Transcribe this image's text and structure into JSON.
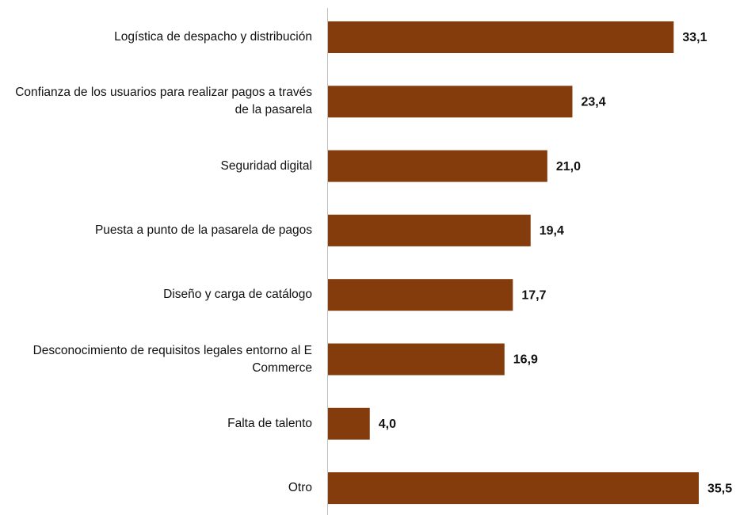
{
  "chart_data": {
    "type": "bar",
    "orientation": "horizontal",
    "color": "#843c0c",
    "categories": [
      "Logística de despacho y distribución",
      "Confianza de los usuarios para realizar pagos a través de la pasarela",
      "Seguridad digital",
      "Puesta a punto de la pasarela de pagos",
      "Diseño y carga de catálogo",
      "Desconocimiento de requisitos legales entorno al E Commerce",
      "Falta de talento",
      "Otro"
    ],
    "values": [
      33.1,
      23.4,
      21.0,
      19.4,
      17.7,
      16.9,
      4.0,
      35.5
    ],
    "value_labels": [
      "33,1",
      "23,4",
      "21,0",
      "19,4",
      "17,7",
      "16,9",
      "4,0",
      "35,5"
    ]
  }
}
